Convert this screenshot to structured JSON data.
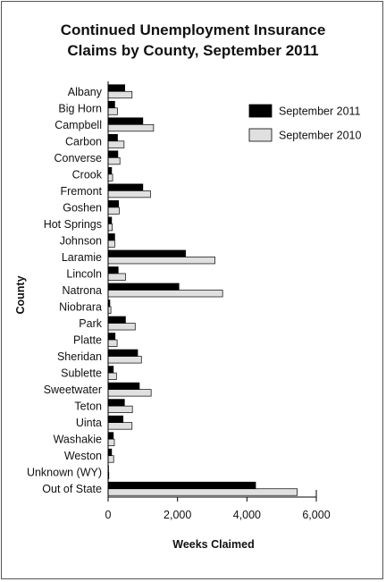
{
  "chart_data": {
    "type": "bar",
    "orientation": "horizontal",
    "title_lines": [
      "Continued Unemployment Insurance",
      "Claims by County, September 2011"
    ],
    "xlabel": "Weeks Claimed",
    "ylabel": "County",
    "xlim": [
      0,
      6000
    ],
    "xticks": [
      0,
      2000,
      4000,
      6000
    ],
    "xtick_labels": [
      "0",
      "2,000",
      "4,000",
      "6,000"
    ],
    "grid": false,
    "legend_position": "top-right",
    "categories": [
      "Albany",
      "Big Horn",
      "Campbell",
      "Carbon",
      "Converse",
      "Crook",
      "Fremont",
      "Goshen",
      "Hot Springs",
      "Johnson",
      "Laramie",
      "Lincoln",
      "Natrona",
      "Niobrara",
      "Park",
      "Platte",
      "Sheridan",
      "Sublette",
      "Sweetwater",
      "Teton",
      "Uinta",
      "Washakie",
      "Weston",
      "Unknown (WY)",
      "Out of State"
    ],
    "series": [
      {
        "name": "September 2011",
        "color": "#000000",
        "values": [
          480,
          190,
          1000,
          270,
          280,
          100,
          1000,
          300,
          100,
          190,
          2230,
          290,
          2040,
          50,
          500,
          200,
          850,
          150,
          900,
          470,
          430,
          150,
          100,
          10,
          4250
        ]
      },
      {
        "name": "September 2010",
        "color": "#e0e0e0",
        "values": [
          690,
          270,
          1310,
          460,
          340,
          130,
          1220,
          320,
          120,
          190,
          3080,
          500,
          3300,
          80,
          780,
          260,
          960,
          240,
          1240,
          700,
          690,
          180,
          160,
          20,
          5450
        ]
      }
    ]
  }
}
